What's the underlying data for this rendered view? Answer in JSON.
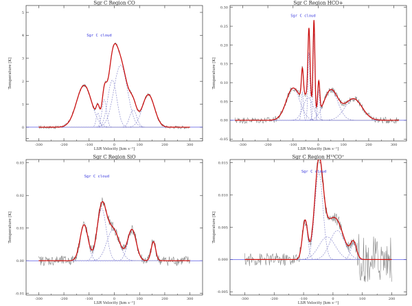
{
  "colors": {
    "observed": "#7a7a7a",
    "fit_total": "#cc1111",
    "fit_component": "#8888cc",
    "cloud_label": "#3333dd",
    "baseline": "#3333dd",
    "axis": "#333333"
  },
  "chart_data": [
    {
      "type": "line",
      "title": "Sgr C Region CO",
      "xlabel": "LSR Velocity [km s⁻¹]",
      "ylabel": "Temperature [K]",
      "annotation": {
        "text": "Sgr C cloud",
        "x": -60,
        "y": 3.95
      },
      "xlim": [
        -350,
        350
      ],
      "ylim": [
        -0.6,
        5.3
      ],
      "xticks": [
        -300,
        -200,
        -100,
        0,
        100,
        200,
        300
      ],
      "yticks": [
        -0.5,
        0,
        1,
        2,
        3,
        4,
        5
      ],
      "ytick_labels": [
        "",
        "0",
        "1",
        "2",
        "3",
        "4",
        "5"
      ],
      "components": [
        {
          "amp": 1.82,
          "center": -120,
          "width": 30
        },
        {
          "amp": 0.62,
          "center": -65,
          "width": 7
        },
        {
          "amp": 1.2,
          "center": -40,
          "width": 9
        },
        {
          "amp": 2.05,
          "center": -8,
          "width": 18
        },
        {
          "amp": 2.7,
          "center": 25,
          "width": 27
        },
        {
          "amp": 0.75,
          "center": 75,
          "width": 14
        },
        {
          "amp": 1.42,
          "center": 135,
          "width": 24
        }
      ],
      "noise": 0.04,
      "data_x_range": [
        -300,
        300
      ]
    },
    {
      "type": "line",
      "title": "Sgr C Region HCO+",
      "xlabel": "LSR Velocity [km s⁻¹]",
      "ylabel": "Temperature [K]",
      "annotation": {
        "text": "Sgr C cloud",
        "x": -60,
        "y": 0.275
      },
      "xlim": [
        -350,
        350
      ],
      "ylim": [
        -0.055,
        0.305
      ],
      "xticks": [
        -300,
        -200,
        -100,
        0,
        100,
        200,
        300
      ],
      "yticks": [
        -0.05,
        0,
        0.05,
        0.1,
        0.15,
        0.2,
        0.25,
        0.3
      ],
      "ytick_labels": [
        "-0.05",
        "0.00",
        "0.05",
        "0.10",
        "0.15",
        "0.20",
        "0.25",
        "0.30"
      ],
      "components": [
        {
          "amp": 0.085,
          "center": -100,
          "width": 27
        },
        {
          "amp": 0.075,
          "center": -63,
          "width": 4
        },
        {
          "amp": 0.18,
          "center": -37,
          "width": 4
        },
        {
          "amp": 0.23,
          "center": -17,
          "width": 3.5
        },
        {
          "amp": 0.08,
          "center": 2,
          "width": 4
        },
        {
          "amp": 0.06,
          "center": -40,
          "width": 20
        },
        {
          "amp": 0.08,
          "center": 50,
          "width": 28
        },
        {
          "amp": 0.057,
          "center": 140,
          "width": 34
        }
      ],
      "noise": 0.005,
      "data_x_range": [
        -330,
        320
      ]
    },
    {
      "type": "line",
      "title": "Sgr C Region SiO",
      "xlabel": "LSR Velocity [km s⁻¹]",
      "ylabel": "Temperature [K]",
      "annotation": {
        "text": "Sgr C cloud",
        "x": -70,
        "y": 0.0255
      },
      "xlim": [
        -350,
        350
      ],
      "ylim": [
        -0.0105,
        0.031
      ],
      "xticks": [
        -300,
        -200,
        -100,
        0,
        100,
        200,
        300
      ],
      "yticks": [
        -0.01,
        0,
        0.01,
        0.02,
        0.03
      ],
      "ytick_labels": [
        "-0.01",
        "0.00",
        "0.01",
        "0.02",
        "0.03"
      ],
      "components": [
        {
          "amp": 0.011,
          "center": -120,
          "width": 16
        },
        {
          "amp": 0.016,
          "center": -50,
          "width": 18
        },
        {
          "amp": 0.0095,
          "center": -5,
          "width": 25
        },
        {
          "amp": 0.0095,
          "center": 70,
          "width": 17
        },
        {
          "amp": 0.0058,
          "center": 155,
          "width": 9
        }
      ],
      "noise": 0.0009,
      "data_x_range": [
        -300,
        300
      ]
    },
    {
      "type": "line",
      "title": "Sgr C Region H¹³CO⁺",
      "xlabel": "LSR Velocity [km s⁻¹]",
      "ylabel": "Temperature [K]",
      "annotation": {
        "text": "Sgr C cloud",
        "x": -65,
        "y": 0.0135
      },
      "xlim": [
        -350,
        250
      ],
      "ylim": [
        -0.0055,
        0.0155
      ],
      "xticks": [
        -300,
        -200,
        -100,
        0,
        100,
        200
      ],
      "yticks": [
        -0.005,
        0,
        0.005,
        0.01,
        0.015
      ],
      "ytick_labels": [
        "-0.005",
        "0.000",
        "0.005",
        "0.010",
        "0.015"
      ],
      "components": [
        {
          "amp": 0.006,
          "center": -95,
          "width": 9
        },
        {
          "amp": 0.0135,
          "center": -48,
          "width": 14
        },
        {
          "amp": 0.0035,
          "center": -20,
          "width": 28
        },
        {
          "amp": 0.0045,
          "center": 15,
          "width": 25
        },
        {
          "amp": 0.0025,
          "center": 70,
          "width": 10
        }
      ],
      "noise": 0.0006,
      "data_x_range": [
        -300,
        200
      ]
    }
  ]
}
